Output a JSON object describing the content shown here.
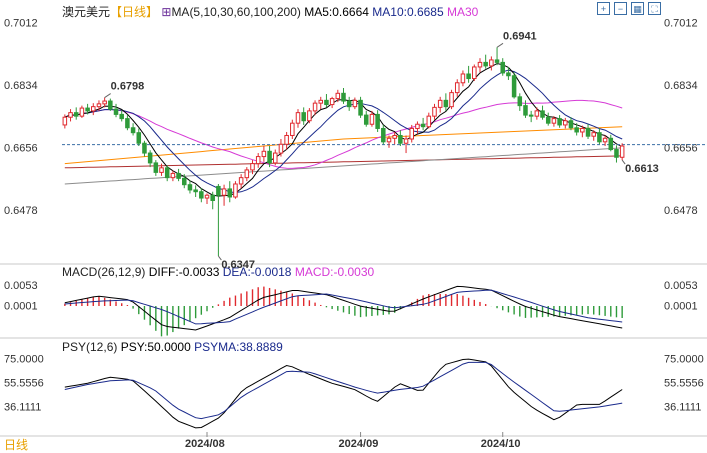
{
  "title": {
    "symbol": "澳元美元",
    "period": "【日线】",
    "ma_icon": "⊞",
    "ma_label": "MA(5,10,30,60,100,200)",
    "ma5": "MA5:0.6664",
    "ma10": "MA10:0.6685",
    "ma30": "MA30"
  },
  "macd_header": {
    "label": "MACD(26,12,9)",
    "diff": "DIFF:-0.0033",
    "dea": "DEA:-0.0018",
    "macd": "MACD:-0.0030"
  },
  "psy_header": {
    "label": "PSY(12,6)",
    "psy": "PSY:50.0000",
    "psyma": "PSYMA:38.8889"
  },
  "bottom_tab": "日线",
  "toolbar_icons": [
    "zoom-in-icon",
    "zoom-out-icon",
    "grid-icon",
    "fullscreen-icon"
  ],
  "colors": {
    "up": "#e0292e",
    "down": "#2e9b3a",
    "ma5": "#000000",
    "ma10": "#1a2a8c",
    "ma30": "#d63ad6",
    "ma60": "#ff8c00",
    "ma100": "#8c8c8c",
    "ma200": "#b03030",
    "dea": "#1a2a8c",
    "ref_line": "#3a6ea5",
    "high_label": "#e0292e",
    "low_label": "#2e9b3a"
  },
  "chart_data": [
    {
      "type": "candlestick",
      "title": "澳元美元 日线",
      "y_ticks": [
        "0.7012",
        "0.6834",
        "0.6656",
        "0.6478"
      ],
      "ylim": [
        0.633,
        0.703
      ],
      "x_ticks": [
        "2024/08",
        "2024/09",
        "2024/10"
      ],
      "x_tick_index": [
        25,
        52,
        77
      ],
      "annotations": [
        {
          "text": "0.6798",
          "index": 7
        },
        {
          "text": "0.6941",
          "index": 76
        },
        {
          "text": "0.6347",
          "index": 27
        },
        {
          "text": "0.6613",
          "index": 98
        }
      ],
      "reference_line": 0.6664,
      "ohlc": [
        [
          0.672,
          0.675,
          0.671,
          0.6742
        ],
        [
          0.6742,
          0.6765,
          0.673,
          0.6755
        ],
        [
          0.6755,
          0.677,
          0.6735,
          0.6745
        ],
        [
          0.6745,
          0.6775,
          0.674,
          0.6768
        ],
        [
          0.6768,
          0.678,
          0.675,
          0.676
        ],
        [
          0.676,
          0.6782,
          0.6748,
          0.6772
        ],
        [
          0.6772,
          0.679,
          0.676,
          0.678
        ],
        [
          0.678,
          0.6798,
          0.677,
          0.6788
        ],
        [
          0.6788,
          0.6795,
          0.676,
          0.6765
        ],
        [
          0.6765,
          0.678,
          0.6742,
          0.675
        ],
        [
          0.675,
          0.6762,
          0.673,
          0.6738
        ],
        [
          0.6738,
          0.6748,
          0.6705,
          0.6712
        ],
        [
          0.6712,
          0.6725,
          0.669,
          0.6698
        ],
        [
          0.6698,
          0.671,
          0.666,
          0.6668
        ],
        [
          0.6668,
          0.6675,
          0.663,
          0.664
        ],
        [
          0.664,
          0.6648,
          0.66,
          0.6612
        ],
        [
          0.6612,
          0.662,
          0.6575,
          0.6585
        ],
        [
          0.6585,
          0.661,
          0.6575,
          0.6598
        ],
        [
          0.6598,
          0.6605,
          0.656,
          0.657
        ],
        [
          0.657,
          0.659,
          0.656,
          0.6582
        ],
        [
          0.6582,
          0.6595,
          0.656,
          0.6568
        ],
        [
          0.6568,
          0.658,
          0.654,
          0.655
        ],
        [
          0.655,
          0.6562,
          0.6525,
          0.6535
        ],
        [
          0.6535,
          0.6548,
          0.6515,
          0.653
        ],
        [
          0.653,
          0.654,
          0.65,
          0.6512
        ],
        [
          0.6512,
          0.6525,
          0.6495,
          0.652
        ],
        [
          0.652,
          0.653,
          0.648,
          0.6505
        ],
        [
          0.6545,
          0.6552,
          0.6347,
          0.652
        ],
        [
          0.652,
          0.655,
          0.649,
          0.6538
        ],
        [
          0.6538,
          0.656,
          0.65,
          0.6515
        ],
        [
          0.6515,
          0.656,
          0.651,
          0.6552
        ],
        [
          0.6552,
          0.658,
          0.654,
          0.657
        ],
        [
          0.657,
          0.66,
          0.656,
          0.6592
        ],
        [
          0.6592,
          0.662,
          0.658,
          0.661
        ],
        [
          0.661,
          0.664,
          0.6598,
          0.663
        ],
        [
          0.663,
          0.666,
          0.6615,
          0.6645
        ],
        [
          0.6645,
          0.666,
          0.66,
          0.6612
        ],
        [
          0.6612,
          0.665,
          0.6605,
          0.664
        ],
        [
          0.664,
          0.668,
          0.663,
          0.6665
        ],
        [
          0.6665,
          0.67,
          0.665,
          0.669
        ],
        [
          0.669,
          0.6735,
          0.668,
          0.6725
        ],
        [
          0.6725,
          0.6765,
          0.6712,
          0.6755
        ],
        [
          0.6755,
          0.677,
          0.672,
          0.6732
        ],
        [
          0.6732,
          0.6768,
          0.6725,
          0.676
        ],
        [
          0.676,
          0.679,
          0.6748,
          0.6782
        ],
        [
          0.6782,
          0.68,
          0.6765,
          0.679
        ],
        [
          0.679,
          0.6808,
          0.677,
          0.6778
        ],
        [
          0.6778,
          0.68,
          0.6768,
          0.6795
        ],
        [
          0.6795,
          0.682,
          0.6785,
          0.681
        ],
        [
          0.681,
          0.6825,
          0.678,
          0.6788
        ],
        [
          0.6788,
          0.68,
          0.676,
          0.6772
        ],
        [
          0.6772,
          0.6798,
          0.6765,
          0.679
        ],
        [
          0.679,
          0.68,
          0.674,
          0.6748
        ],
        [
          0.6748,
          0.676,
          0.6715,
          0.6722
        ],
        [
          0.6722,
          0.676,
          0.6715,
          0.675
        ],
        [
          0.675,
          0.6762,
          0.67,
          0.671
        ],
        [
          0.671,
          0.672,
          0.6665,
          0.6672
        ],
        [
          0.6672,
          0.669,
          0.6655,
          0.6682
        ],
        [
          0.6682,
          0.67,
          0.6665,
          0.669
        ],
        [
          0.669,
          0.6705,
          0.666,
          0.6668
        ],
        [
          0.6668,
          0.669,
          0.664,
          0.668
        ],
        [
          0.668,
          0.672,
          0.667,
          0.671
        ],
        [
          0.671,
          0.673,
          0.6695,
          0.6722
        ],
        [
          0.6722,
          0.674,
          0.6705,
          0.6715
        ],
        [
          0.6715,
          0.6755,
          0.671,
          0.6745
        ],
        [
          0.6745,
          0.678,
          0.6735,
          0.677
        ],
        [
          0.677,
          0.68,
          0.6755,
          0.679
        ],
        [
          0.679,
          0.681,
          0.676,
          0.6772
        ],
        [
          0.6772,
          0.682,
          0.6765,
          0.6812
        ],
        [
          0.6812,
          0.685,
          0.68,
          0.684
        ],
        [
          0.684,
          0.6875,
          0.683,
          0.6865
        ],
        [
          0.6865,
          0.6888,
          0.684,
          0.6852
        ],
        [
          0.6852,
          0.6892,
          0.6845,
          0.6885
        ],
        [
          0.6885,
          0.691,
          0.687,
          0.6898
        ],
        [
          0.6898,
          0.692,
          0.688,
          0.6888
        ],
        [
          0.6888,
          0.6915,
          0.6875,
          0.6905
        ],
        [
          0.6905,
          0.6941,
          0.689,
          0.6898
        ],
        [
          0.6898,
          0.691,
          0.686,
          0.6868
        ],
        [
          0.6868,
          0.6885,
          0.6848,
          0.686
        ],
        [
          0.686,
          0.687,
          0.6795,
          0.68
        ],
        [
          0.68,
          0.681,
          0.676,
          0.6775
        ],
        [
          0.6775,
          0.679,
          0.674,
          0.6748
        ],
        [
          0.6748,
          0.676,
          0.6728,
          0.6745
        ],
        [
          0.6745,
          0.677,
          0.6735,
          0.676
        ],
        [
          0.676,
          0.6775,
          0.6735,
          0.6742
        ],
        [
          0.6742,
          0.6755,
          0.6718,
          0.6725
        ],
        [
          0.6725,
          0.6745,
          0.6715,
          0.6738
        ],
        [
          0.6738,
          0.6748,
          0.6712,
          0.672
        ],
        [
          0.672,
          0.674,
          0.671,
          0.6732
        ],
        [
          0.6732,
          0.6742,
          0.6705,
          0.6712
        ],
        [
          0.6712,
          0.6725,
          0.669,
          0.67
        ],
        [
          0.67,
          0.6718,
          0.6685,
          0.671
        ],
        [
          0.671,
          0.6722,
          0.668,
          0.6688
        ],
        [
          0.6688,
          0.6705,
          0.6675,
          0.6698
        ],
        [
          0.6698,
          0.671,
          0.6665,
          0.6672
        ],
        [
          0.6672,
          0.669,
          0.666,
          0.6682
        ],
        [
          0.6682,
          0.6692,
          0.6645,
          0.665
        ],
        [
          0.665,
          0.6662,
          0.6613,
          0.6628
        ],
        [
          0.6628,
          0.6668,
          0.662,
          0.666
        ]
      ],
      "ma200": [
        0.6598,
        0.6632
      ],
      "ma100": [
        0.6552,
        0.6655
      ],
      "ma60_anchor": [
        0.661,
        0.668,
        0.6715
      ]
    },
    {
      "type": "bar",
      "title": "MACD(26,12,9)",
      "y_ticks": [
        "0.0053",
        "0.0001"
      ],
      "ylim": [
        -0.0075,
        0.0075
      ],
      "series": [
        {
          "name": "DIFF",
          "anchors": [
            0.0008,
            0.0025,
            0.0015,
            -0.005,
            -0.006,
            -0.003,
            0.002,
            0.004,
            0.0028,
            0.0,
            -0.0015,
            0.002,
            0.005,
            0.004,
            0.0,
            -0.0025,
            -0.004,
            -0.0055
          ]
        },
        {
          "name": "DEA",
          "anchors": [
            0.0005,
            0.0012,
            0.0015,
            -0.001,
            -0.0045,
            -0.004,
            -0.0005,
            0.0025,
            0.003,
            0.0014,
            -0.0005,
            0.0005,
            0.0035,
            0.004,
            0.0015,
            -0.0012,
            -0.003,
            -0.004
          ]
        },
        {
          "name": "MACD"
        }
      ]
    },
    {
      "type": "line",
      "title": "PSY(12,6)",
      "y_ticks": [
        "75.0000",
        "55.5556",
        "36.1111"
      ],
      "ylim": [
        14,
        82
      ],
      "series": [
        {
          "name": "PSY",
          "anchors": [
            52,
            55,
            60,
            58,
            42,
            25,
            18,
            28,
            50,
            60,
            70,
            62,
            55,
            50,
            40,
            55,
            48,
            70,
            75,
            72,
            50,
            35,
            25,
            38,
            38,
            50
          ]
        },
        {
          "name": "PSYMA",
          "anchors": [
            50,
            54,
            57,
            58,
            50,
            35,
            26,
            30,
            45,
            55,
            65,
            64,
            58,
            52,
            47,
            50,
            52,
            62,
            72,
            72,
            58,
            45,
            32,
            34,
            36,
            39
          ]
        }
      ]
    }
  ]
}
